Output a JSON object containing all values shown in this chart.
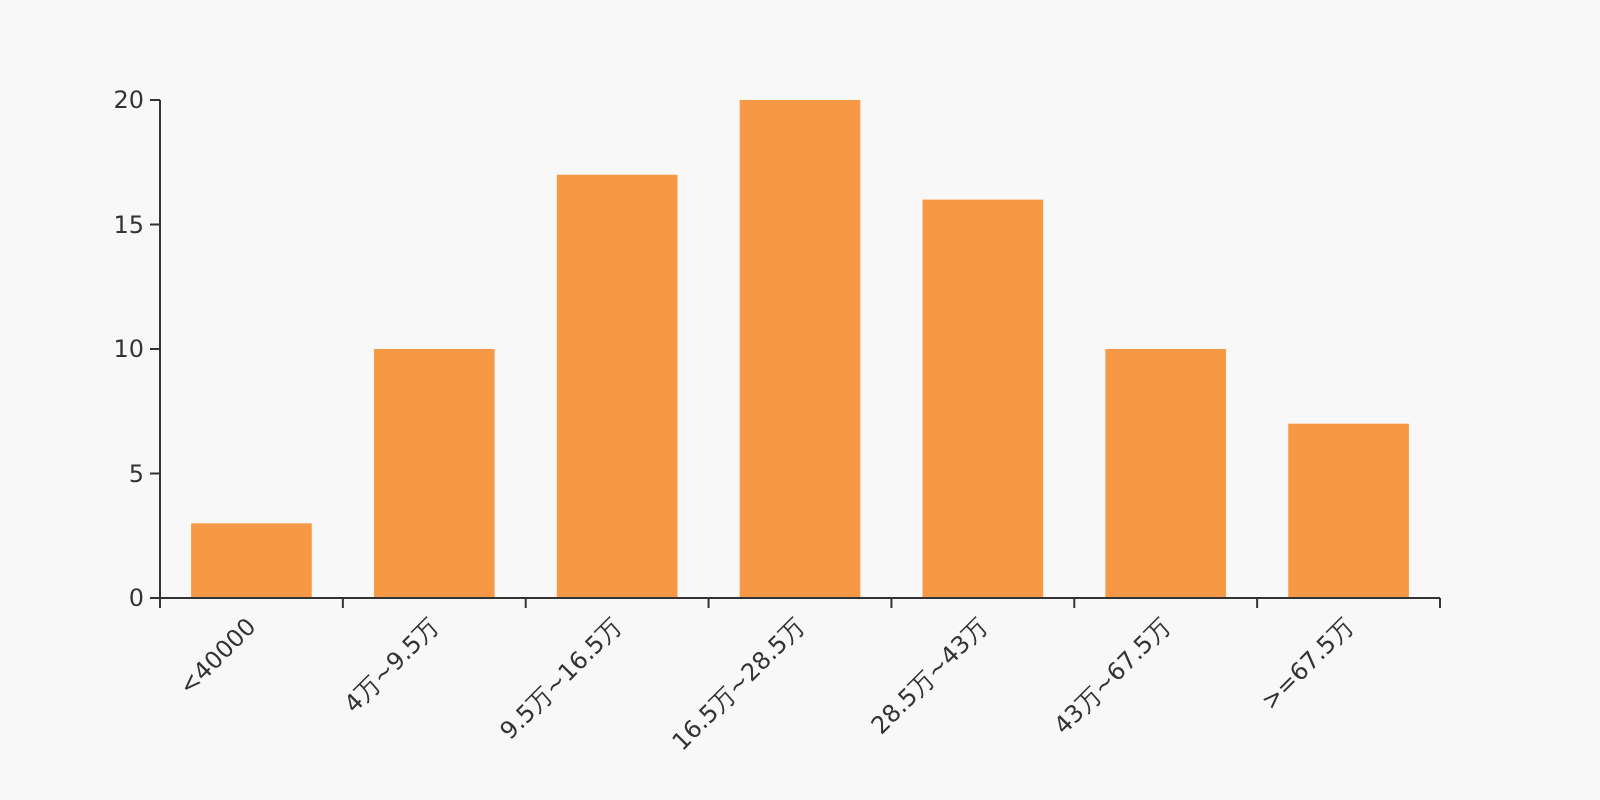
{
  "chart_data": {
    "type": "bar",
    "categories": [
      "<40000",
      "4万~9.5万",
      "9.5万~16.5万",
      "16.5万~28.5万",
      "28.5万~43万",
      "43万~67.5万",
      ">=67.5万"
    ],
    "values": [
      3,
      10,
      17,
      20,
      16,
      10,
      7
    ],
    "color": "#f79846",
    "ylim": [
      0,
      20
    ],
    "yticks": [
      0,
      5,
      10,
      15,
      20
    ]
  }
}
